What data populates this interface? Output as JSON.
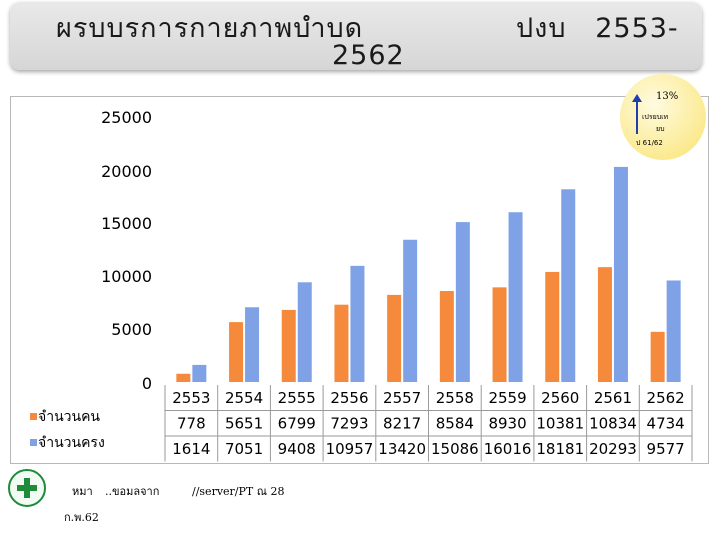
{
  "header": {
    "title_line1": "ผรบบรการกายภาพบำบด",
    "title_right": "ปงบ   2553-",
    "title_line2": "2562"
  },
  "annotation": {
    "percent": "13%",
    "note_line1": "เปรยบเท",
    "note_line2": "ยบ",
    "note_line3": "ป   61/62",
    "arrow_color": "#1f3fae"
  },
  "colors": {
    "series_people": "#f58a3c",
    "series_visits": "#7fa2e6"
  },
  "chart_data": {
    "type": "bar",
    "categories": [
      "2553",
      "2554",
      "2555",
      "2556",
      "2557",
      "2558",
      "2559",
      "2560",
      "2561",
      "2562"
    ],
    "series": [
      {
        "name": "จำนวนคน",
        "values": [
          778,
          5651,
          6799,
          7293,
          8217,
          8584,
          8930,
          10381,
          10834,
          4734
        ]
      },
      {
        "name": "จำนวนครง",
        "values": [
          1614,
          7051,
          9408,
          10957,
          13420,
          15086,
          16016,
          18181,
          20293,
          9577
        ]
      }
    ],
    "ylim": [
      0,
      25000
    ],
    "yticks": [
      "0",
      "5000",
      "10000",
      "15000",
      "20000",
      "25000"
    ],
    "data_table": true
  },
  "footer": {
    "note1": "หมา",
    "note2": "..ขอมลจาก",
    "note3": "//server/PT ณ  28",
    "note4": "ก.พ.62"
  }
}
